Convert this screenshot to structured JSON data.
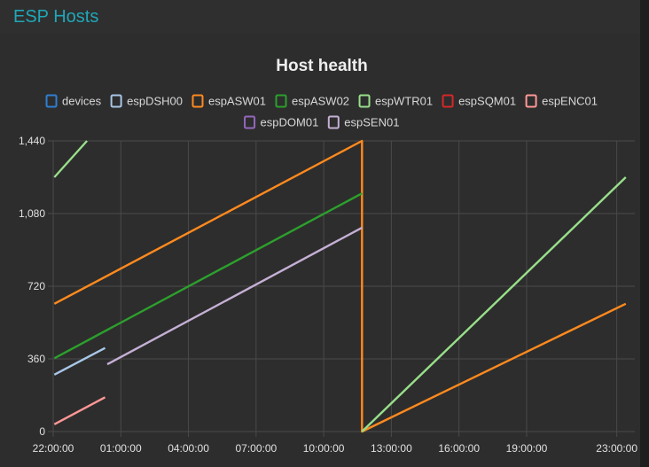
{
  "header": {
    "group_title": "ESP Hosts"
  },
  "colors": {
    "panel_bg": "#2f2f2f",
    "accent": "#1fa7b8",
    "grid": "#4a4a4a",
    "text": "#e0e0e0"
  },
  "chart_data": {
    "type": "line",
    "title": "Host health",
    "xlabel": "",
    "ylabel": "",
    "ylim": [
      0,
      1440
    ],
    "yticks": [
      0,
      360,
      720,
      1080,
      1440
    ],
    "ytick_labels": [
      "0",
      "360",
      "720",
      "1,080",
      "1,440"
    ],
    "x_start": "22:00:00",
    "xticks": [
      "22:00:00",
      "01:00:00",
      "04:00:00",
      "07:00:00",
      "10:00:00",
      "13:00:00",
      "16:00:00",
      "19:00:00",
      "23:00:00"
    ],
    "xtick_hours": [
      0,
      3,
      6,
      9,
      12,
      15,
      18,
      21,
      25
    ],
    "grid": true,
    "legend_position": "top",
    "series": [
      {
        "name": "devices",
        "color": "#2f7fd2",
        "points": []
      },
      {
        "name": "espDSH00",
        "color": "#a9c6e8",
        "points": [
          [
            0.05,
            282
          ],
          [
            2.3,
            414
          ]
        ]
      },
      {
        "name": "espASW01",
        "color": "#ff8a1e",
        "points": [
          [
            0.05,
            633
          ],
          [
            13.7,
            1440
          ],
          [
            13.7,
            0
          ],
          [
            25.4,
            633
          ]
        ]
      },
      {
        "name": "espASW02",
        "color": "#2ca02c",
        "points": [
          [
            0.05,
            363
          ],
          [
            13.7,
            1180
          ]
        ]
      },
      {
        "name": "espWTR01",
        "color": "#98df8a",
        "points": [
          [
            0.05,
            1260
          ],
          [
            1.5,
            1440
          ],
          null,
          [
            13.7,
            0
          ],
          [
            25.4,
            1260
          ]
        ]
      },
      {
        "name": "espSQM01",
        "color": "#d62728",
        "points": []
      },
      {
        "name": "espENC01",
        "color": "#ff9896",
        "points": [
          [
            0.05,
            36
          ],
          [
            2.3,
            170
          ]
        ]
      },
      {
        "name": "espDOM01",
        "color": "#9467bd",
        "points": []
      },
      {
        "name": "espSEN01",
        "color": "#c5b0d5",
        "points": [
          [
            2.4,
            333
          ],
          [
            13.7,
            1010
          ]
        ]
      }
    ]
  }
}
